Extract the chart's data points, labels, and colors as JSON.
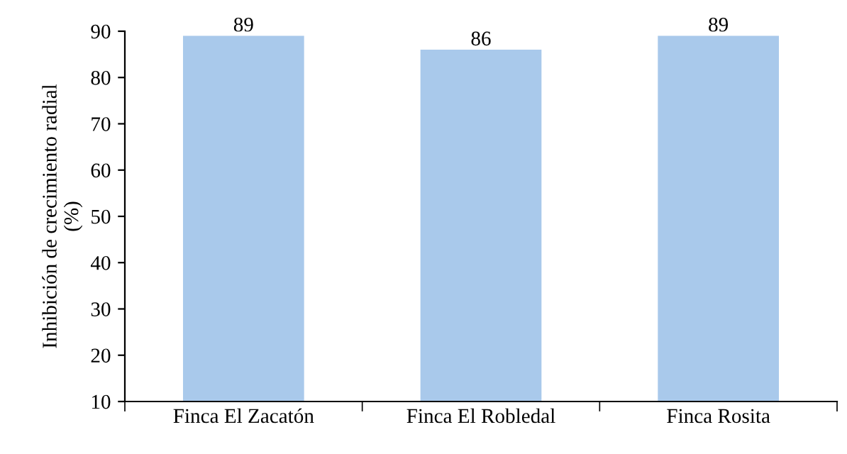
{
  "chart_data": {
    "type": "bar",
    "ylabel": "Inhibición de crecimiento radial\n(%)",
    "categories": [
      "Finca El Zacatón",
      "Finca El Robledal",
      "Finca Rosita"
    ],
    "values": [
      89,
      86,
      89
    ],
    "color": "#a9c9eb",
    "ylim": [
      10,
      90
    ],
    "yticks": [
      10,
      20,
      30,
      40,
      50,
      60,
      70,
      80,
      90
    ],
    "data_labels": true,
    "grid": false,
    "legend": false
  }
}
